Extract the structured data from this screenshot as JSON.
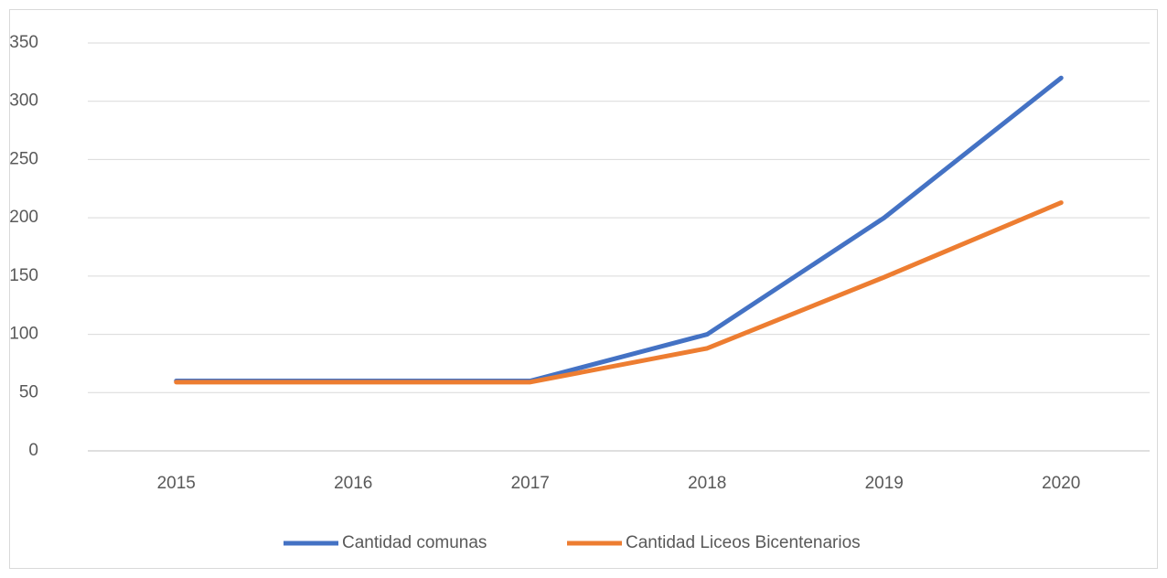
{
  "chart_data": {
    "type": "line",
    "categories": [
      "2015",
      "2016",
      "2017",
      "2018",
      "2019",
      "2020"
    ],
    "series": [
      {
        "name": "Cantidad comunas",
        "color": "#4472c4",
        "values": [
          60,
          60,
          60,
          100,
          200,
          320
        ]
      },
      {
        "name": "Cantidad Liceos Bicentenarios",
        "color": "#ed7d31",
        "values": [
          59,
          59,
          59,
          88,
          149,
          213
        ]
      }
    ],
    "ylim": [
      0,
      350
    ],
    "yticks": [
      0,
      50,
      100,
      150,
      200,
      250,
      300,
      350
    ],
    "grid": true,
    "legend": "bottom"
  }
}
